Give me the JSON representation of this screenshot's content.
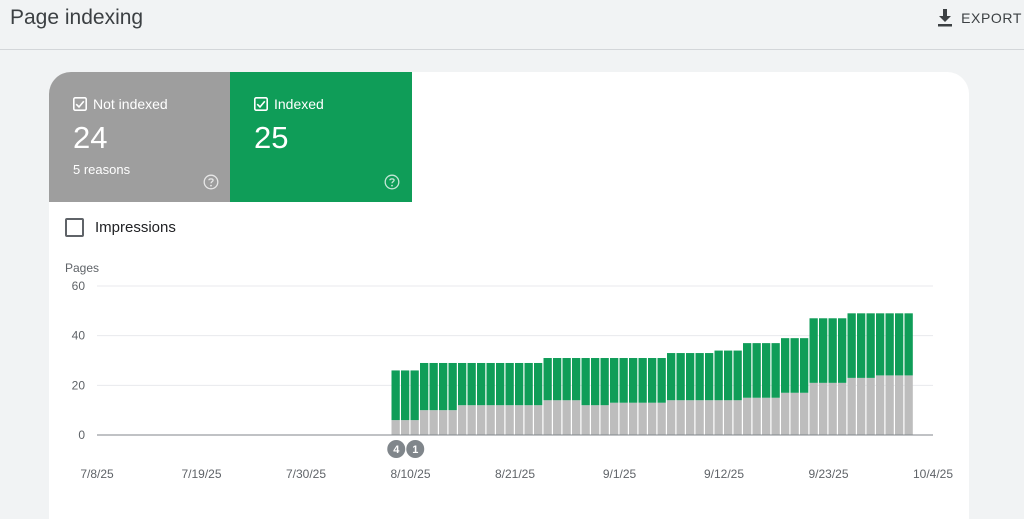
{
  "header": {
    "title": "Page indexing",
    "export_label": "EXPORT"
  },
  "tiles": {
    "not_indexed": {
      "label": "Not indexed",
      "count": "24",
      "sub": "5 reasons",
      "color": "#9e9e9e"
    },
    "indexed": {
      "label": "Indexed",
      "count": "25",
      "color": "#0f9d58"
    }
  },
  "impressions": {
    "label": "Impressions",
    "checked": false
  },
  "chart_data": {
    "type": "bar",
    "stacked": true,
    "ylabel": "Pages",
    "ylim": [
      0,
      60
    ],
    "yticks": [
      0,
      20,
      40,
      60
    ],
    "x_start": "7/8/25",
    "x_end": "10/4/25",
    "xticks": [
      "7/8/25",
      "7/19/25",
      "7/30/25",
      "8/10/25",
      "8/21/25",
      "9/1/25",
      "9/12/25",
      "9/23/25",
      "10/4/25"
    ],
    "series": [
      {
        "name": "Not indexed",
        "color": "#bdbdbd",
        "values": [
          6,
          6,
          6,
          10,
          10,
          10,
          10,
          12,
          12,
          12,
          12,
          12,
          12,
          12,
          12,
          12,
          14,
          14,
          14,
          14,
          12,
          12,
          12,
          13,
          13,
          13,
          13,
          13,
          13,
          14,
          14,
          14,
          14,
          14,
          14,
          14,
          14,
          15,
          15,
          15,
          15,
          17,
          17,
          17,
          21,
          21,
          21,
          21,
          23,
          23,
          23,
          24,
          24,
          24,
          24
        ]
      },
      {
        "name": "Indexed",
        "color": "#0f9d58",
        "values": [
          20,
          20,
          20,
          19,
          19,
          19,
          19,
          17,
          17,
          17,
          17,
          17,
          17,
          17,
          17,
          17,
          17,
          17,
          17,
          17,
          19,
          19,
          19,
          18,
          18,
          18,
          18,
          18,
          18,
          19,
          19,
          19,
          19,
          19,
          20,
          20,
          20,
          22,
          22,
          22,
          22,
          22,
          22,
          22,
          26,
          26,
          26,
          26,
          26,
          26,
          26,
          25,
          25,
          25,
          25
        ]
      }
    ],
    "first_data_date": "8/8/25",
    "annotations": [
      {
        "label": "4",
        "date": "8/8/25"
      },
      {
        "label": "1",
        "date": "8/10/25"
      }
    ]
  }
}
